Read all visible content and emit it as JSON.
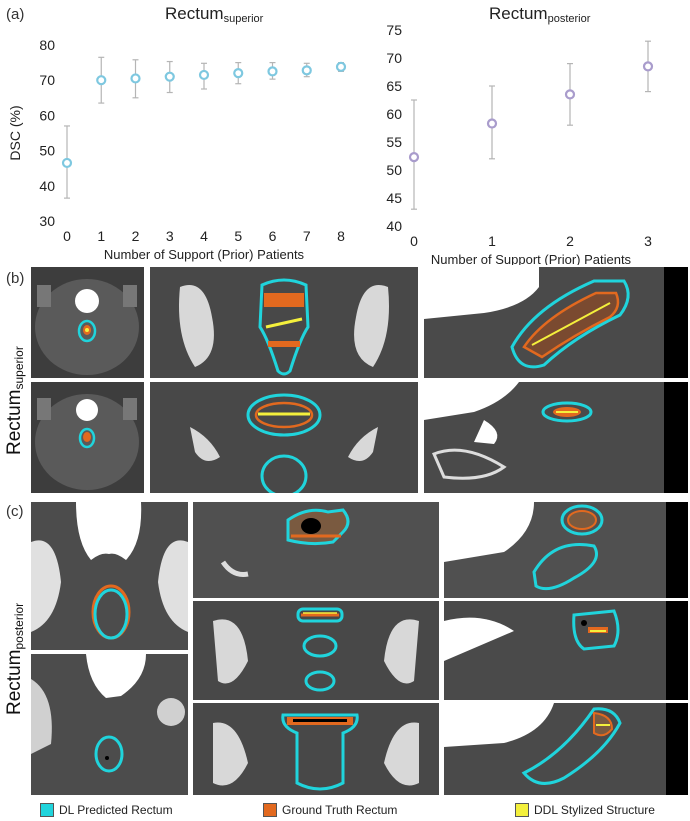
{
  "panels": {
    "a": "(a)",
    "b": "(b)",
    "c": "(c)"
  },
  "chart_data": [
    {
      "type": "scatter",
      "title_main": "Rectum",
      "title_sub": "superior",
      "xlabel": "Number of Support (Prior) Patients",
      "ylabel": "DSC (%)",
      "x": [
        0,
        1,
        2,
        3,
        4,
        5,
        6,
        7,
        8
      ],
      "values": [
        46.5,
        70,
        70.5,
        71,
        71.5,
        72,
        72.5,
        72.8,
        73.8
      ],
      "err_low": [
        36.5,
        63.5,
        65,
        66.5,
        67.5,
        69,
        70.3,
        71,
        72.5
      ],
      "err_high": [
        57,
        76.5,
        75.8,
        75.3,
        74.8,
        75,
        75,
        74.8,
        75
      ],
      "xlim": [
        0,
        8
      ],
      "ylim": [
        30,
        80
      ],
      "yticks": [
        30,
        40,
        50,
        60,
        70,
        80
      ],
      "xticks": [
        0,
        1,
        2,
        3,
        4,
        5,
        6,
        7,
        8
      ],
      "marker_color": "#7ec8e0"
    },
    {
      "type": "scatter",
      "title_main": "Rectum",
      "title_sub": "posterior",
      "xlabel": "Number of Support (Prior) Patients",
      "ylabel": "",
      "x": [
        0,
        1,
        2,
        3
      ],
      "values": [
        52.3,
        58.3,
        63.5,
        68.5
      ],
      "err_low": [
        43,
        52,
        58,
        64
      ],
      "err_high": [
        62.5,
        65,
        69,
        73
      ],
      "xlim": [
        0,
        3
      ],
      "ylim": [
        40,
        75
      ],
      "yticks": [
        40,
        45,
        50,
        55,
        60,
        65,
        70,
        75
      ],
      "xticks": [
        0,
        1,
        2,
        3
      ],
      "marker_color": "#a99ccc"
    }
  ],
  "row_labels": {
    "b_main": "Rectum",
    "b_sub": "superior",
    "c_main": "Rectum",
    "c_sub": "posterior"
  },
  "legend": [
    {
      "label": "DL Predicted Rectum",
      "color": "#20d4dc"
    },
    {
      "label": "Ground Truth Rectum",
      "color": "#e2691f"
    },
    {
      "label": "DDL Stylized Structure",
      "color": "#f4f03c"
    }
  ]
}
